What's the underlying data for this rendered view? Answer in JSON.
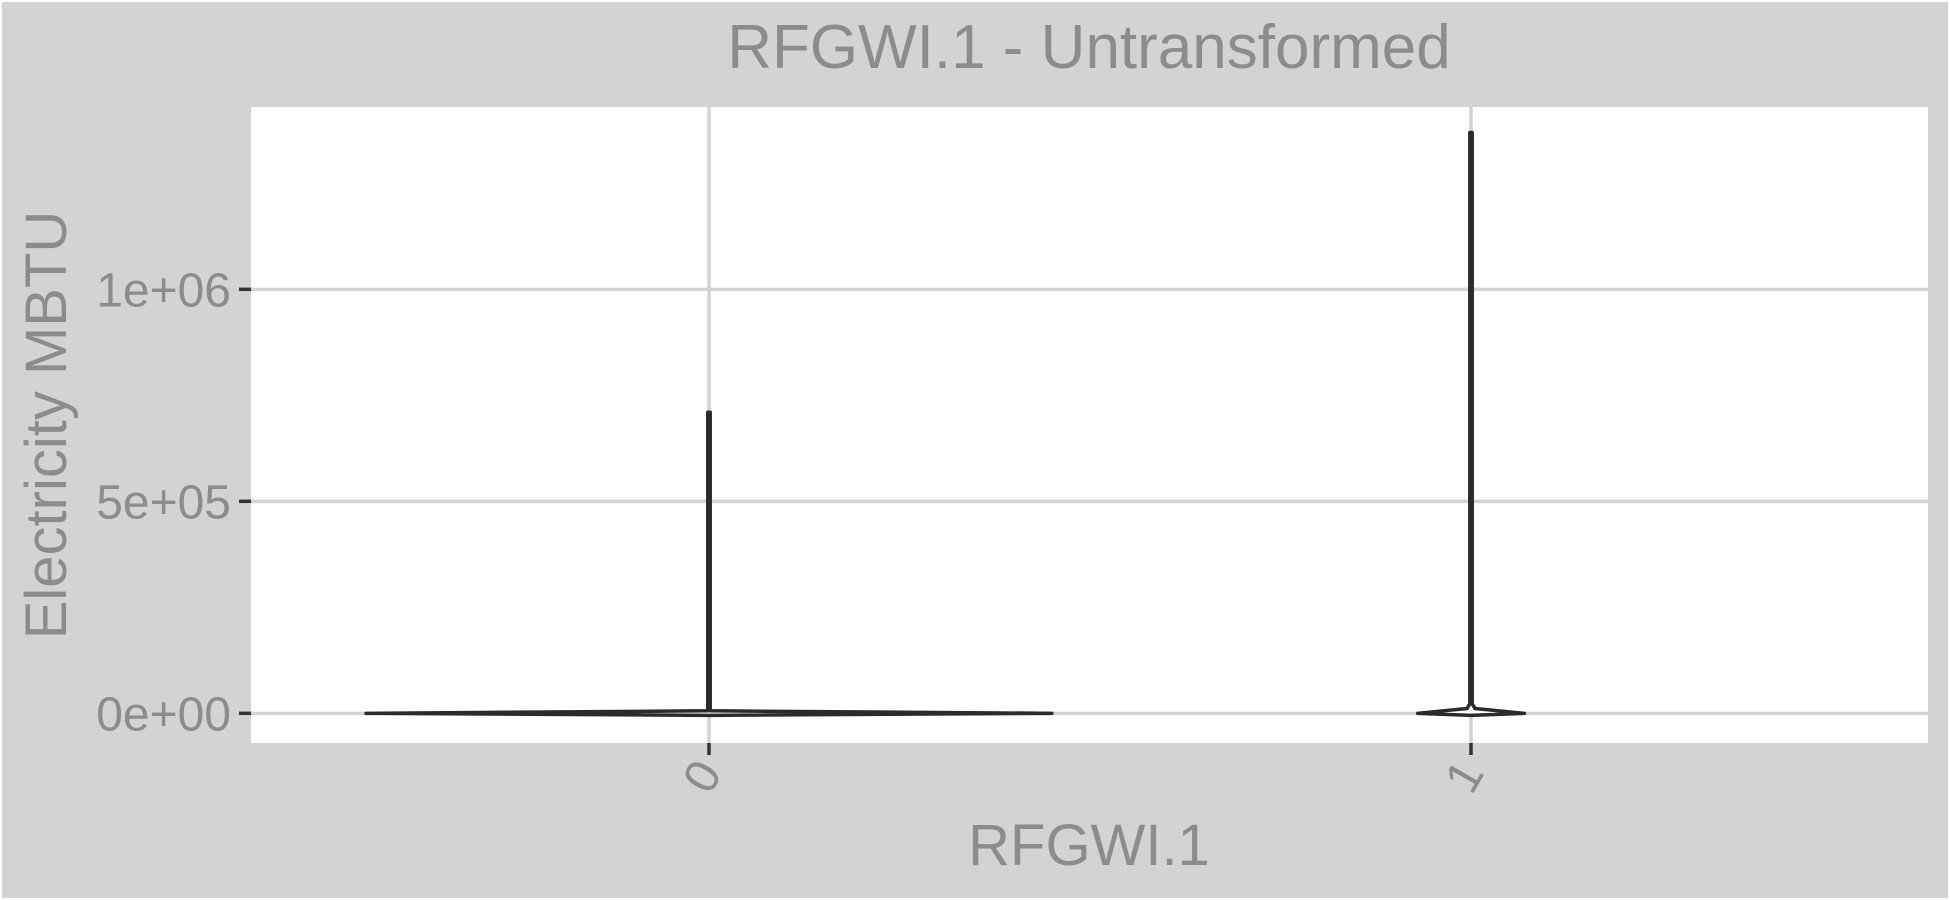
{
  "chart_data": {
    "type": "violin",
    "title": "RFGWI.1 - Untransformed",
    "xlabel": "RFGWI.1",
    "ylabel": "Electricity MBTU",
    "categories": [
      "0",
      "1"
    ],
    "ylim": [
      -70000,
      1430000
    ],
    "y_ticks": [
      0,
      500000,
      1000000
    ],
    "y_tick_labels": [
      "0e+00",
      "5e+05",
      "1e+06"
    ],
    "grid": true,
    "violins": [
      {
        "category": "0",
        "min": 0,
        "max": 710000,
        "max_half_width": 0.45
      },
      {
        "category": "1",
        "min": 0,
        "max": 1370000,
        "max_half_width": 0.07
      }
    ],
    "colors": {
      "background": "#d3d3d3",
      "panel": "#ffffff",
      "grid": "#d3d3d3",
      "text": "#8c8c8c",
      "violin": "#2b2b2b"
    }
  }
}
